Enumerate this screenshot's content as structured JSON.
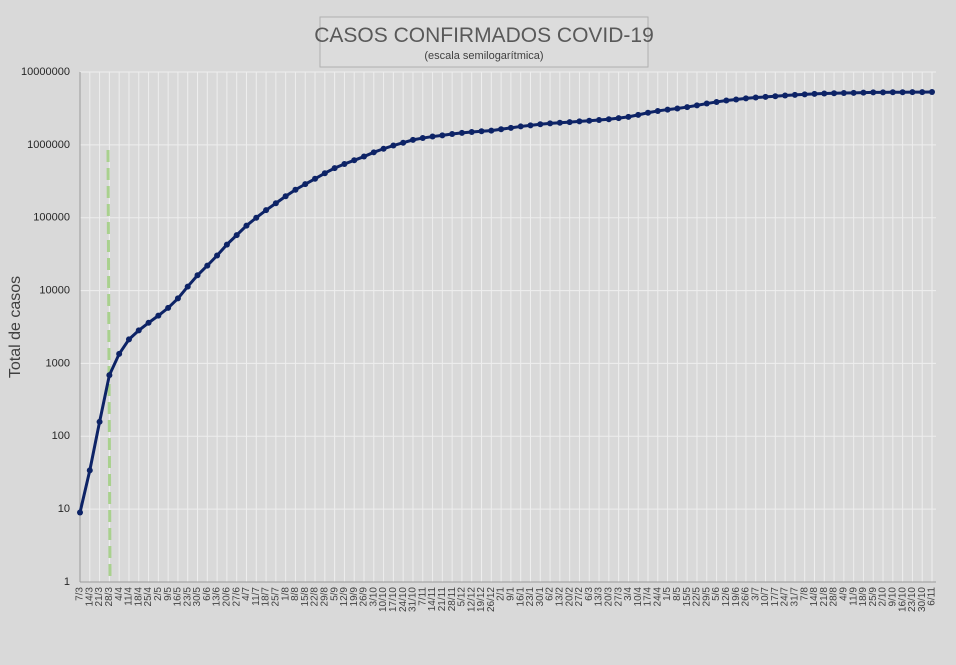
{
  "chart_data": {
    "type": "line",
    "title": "CASOS CONFIRMADOS COVID-19",
    "subtitle": "(escala semilogarítmica)",
    "y_label": "Total de casos",
    "log_scale": true,
    "grid": true,
    "categories": [
      "7/3",
      "14/3",
      "21/3",
      "28/3",
      "4/4",
      "11/4",
      "18/4",
      "25/4",
      "2/5",
      "9/5",
      "16/5",
      "23/5",
      "30/5",
      "6/6",
      "13/6",
      "20/6",
      "27/6",
      "4/7",
      "11/7",
      "18/7",
      "25/7",
      "1/8",
      "8/8",
      "15/8",
      "22/8",
      "29/8",
      "5/9",
      "12/9",
      "19/9",
      "26/9",
      "3/10",
      "10/10",
      "17/10",
      "24/10",
      "31/10",
      "7/11",
      "14/11",
      "21/11",
      "28/11",
      "5/12",
      "12/12",
      "19/12",
      "26/12",
      "2/1",
      "9/1",
      "16/1",
      "23/1",
      "30/1",
      "6/2",
      "13/2",
      "20/2",
      "27/2",
      "6/3",
      "13/3",
      "20/3",
      "27/3",
      "3/4",
      "10/4",
      "17/4",
      "24/4",
      "1/5",
      "8/5",
      "15/5",
      "22/5",
      "29/5",
      "5/6",
      "12/6",
      "19/6",
      "26/6",
      "3/7",
      "10/7",
      "17/7",
      "24/7",
      "31/7",
      "7/8",
      "14/8",
      "21/8",
      "28/8",
      "4/9",
      "11/9",
      "18/9",
      "25/9",
      "2/10",
      "9/10",
      "16/10",
      "23/10",
      "30/10",
      "6/11"
    ],
    "series": [
      {
        "name": "Total de casos",
        "color": "#0d2366",
        "values": [
          9,
          34,
          158,
          690,
          1350,
          2140,
          2840,
          3610,
          4530,
          5780,
          7800,
          11350,
          16200,
          22000,
          30300,
          42800,
          57700,
          77800,
          100000,
          127000,
          158000,
          197000,
          242000,
          289000,
          342000,
          408000,
          479000,
          546000,
          614000,
          691000,
          790000,
          884000,
          979000,
          1070000,
          1170000,
          1240000,
          1300000,
          1350000,
          1410000,
          1460000,
          1500000,
          1540000,
          1570000,
          1640000,
          1710000,
          1790000,
          1850000,
          1920000,
          1970000,
          2010000,
          2050000,
          2100000,
          2140000,
          2190000,
          2250000,
          2330000,
          2420000,
          2580000,
          2760000,
          2920000,
          3050000,
          3160000,
          3300000,
          3480000,
          3690000,
          3880000,
          4060000,
          4200000,
          4340000,
          4460000,
          4550000,
          4650000,
          4760000,
          4850000,
          4930000,
          5000000,
          5060000,
          5110000,
          5140000,
          5170000,
          5210000,
          5250000,
          5260000,
          5270000,
          5280000,
          5290000,
          5300000,
          5310000
        ]
      }
    ],
    "ylim": [
      1,
      10000000
    ],
    "yticks": [
      1,
      10,
      100,
      1000,
      10000,
      100000,
      1000000,
      10000000
    ]
  }
}
